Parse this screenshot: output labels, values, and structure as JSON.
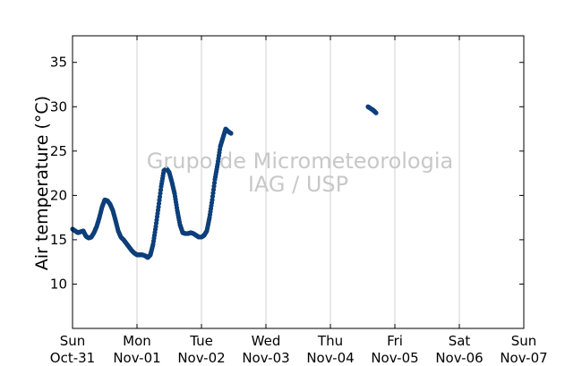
{
  "chart_data": {
    "type": "scatter",
    "title": "",
    "xlabel": "",
    "ylabel": "Air temperature (°C)",
    "ylim": [
      5,
      38
    ],
    "xlim": [
      "2015-10-31 00:00",
      "2015-11-07 00:00"
    ],
    "yticks": [
      10,
      15,
      20,
      25,
      30,
      35
    ],
    "xticks": [
      {
        "day": "Sun",
        "date": "Oct-31"
      },
      {
        "day": "Mon",
        "date": "Nov-01"
      },
      {
        "day": "Tue",
        "date": "Nov-02"
      },
      {
        "day": "Wed",
        "date": "Nov-03"
      },
      {
        "day": "Thu",
        "date": "Nov-04"
      },
      {
        "day": "Fri",
        "date": "Nov-05"
      },
      {
        "day": "Sat",
        "date": "Nov-06"
      },
      {
        "day": "Sun",
        "date": "Nov-07"
      }
    ],
    "grid": "vertical",
    "marker_color": "#0d3f7a",
    "series": [
      {
        "x": [
          "2015-10-31 00:00",
          "2015-10-31 01:00",
          "2015-10-31 02:00",
          "2015-10-31 03:00",
          "2015-10-31 04:00",
          "2015-10-31 05:00",
          "2015-10-31 06:00",
          "2015-10-31 07:00",
          "2015-10-31 08:00",
          "2015-10-31 09:00",
          "2015-10-31 10:00",
          "2015-10-31 11:00",
          "2015-10-31 12:00",
          "2015-10-31 13:00",
          "2015-10-31 14:00",
          "2015-10-31 15:00",
          "2015-10-31 16:00",
          "2015-10-31 17:00",
          "2015-10-31 18:00",
          "2015-10-31 19:00",
          "2015-10-31 20:00",
          "2015-10-31 21:00",
          "2015-10-31 22:00",
          "2015-10-31 23:00",
          "2015-11-01 00:00",
          "2015-11-01 01:00",
          "2015-11-01 02:00",
          "2015-11-01 03:00",
          "2015-11-01 04:00",
          "2015-11-01 05:00",
          "2015-11-01 06:00",
          "2015-11-01 07:00",
          "2015-11-01 08:00",
          "2015-11-01 09:00",
          "2015-11-01 10:00",
          "2015-11-01 11:00",
          "2015-11-01 12:00",
          "2015-11-01 13:00",
          "2015-11-01 14:00",
          "2015-11-01 15:00",
          "2015-11-01 16:00",
          "2015-11-01 17:00",
          "2015-11-01 18:00",
          "2015-11-01 19:00",
          "2015-11-01 20:00",
          "2015-11-01 21:00",
          "2015-11-01 22:00",
          "2015-11-01 23:00",
          "2015-11-02 00:00",
          "2015-11-02 01:00",
          "2015-11-02 02:00",
          "2015-11-02 03:00",
          "2015-11-02 04:00",
          "2015-11-02 05:00",
          "2015-11-02 06:00",
          "2015-11-02 07:00",
          "2015-11-02 08:00",
          "2015-11-02 09:00",
          "2015-11-02 10:00",
          "2015-11-02 11:00",
          "2015-11-02 12:00",
          "2015-11-02 13:00",
          "2015-11-02 14:00",
          "2015-11-02 15:00",
          "2015-11-02 16:00",
          "2015-11-02 17:00",
          "2015-11-02 18:00",
          "2015-11-02 19:00",
          "2015-11-02 20:00",
          "2015-11-02 21:00",
          "2015-11-02 22:00",
          "2015-11-04 14:00",
          "2015-11-04 15:00",
          "2015-11-04 16:00",
          "2015-11-04 17:00"
        ],
        "y": [
          16.2,
          16.0,
          15.8,
          15.9,
          16.0,
          15.4,
          15.2,
          15.3,
          15.8,
          16.5,
          17.5,
          18.7,
          19.5,
          19.4,
          19.0,
          18.3,
          17.2,
          16.0,
          15.3,
          15.0,
          14.6,
          14.2,
          13.8,
          13.5,
          13.3,
          13.3,
          13.3,
          13.2,
          13.0,
          13.3,
          14.5,
          16.5,
          18.7,
          21.0,
          22.8,
          23.0,
          22.6,
          21.5,
          20.2,
          18.3,
          16.7,
          15.8,
          15.7,
          15.7,
          15.8,
          15.7,
          15.5,
          15.3,
          15.3,
          15.5,
          16.0,
          17.5,
          19.5,
          21.8,
          23.5,
          25.5,
          26.5,
          27.5,
          27.2,
          27.0,
          null,
          null,
          null,
          null,
          null,
          null,
          null,
          null,
          null,
          null,
          null,
          30.0,
          29.8,
          29.6,
          29.3
        ]
      }
    ],
    "annotations": [
      "Grupo de Micrometeorologia",
      "IAG / USP"
    ]
  }
}
